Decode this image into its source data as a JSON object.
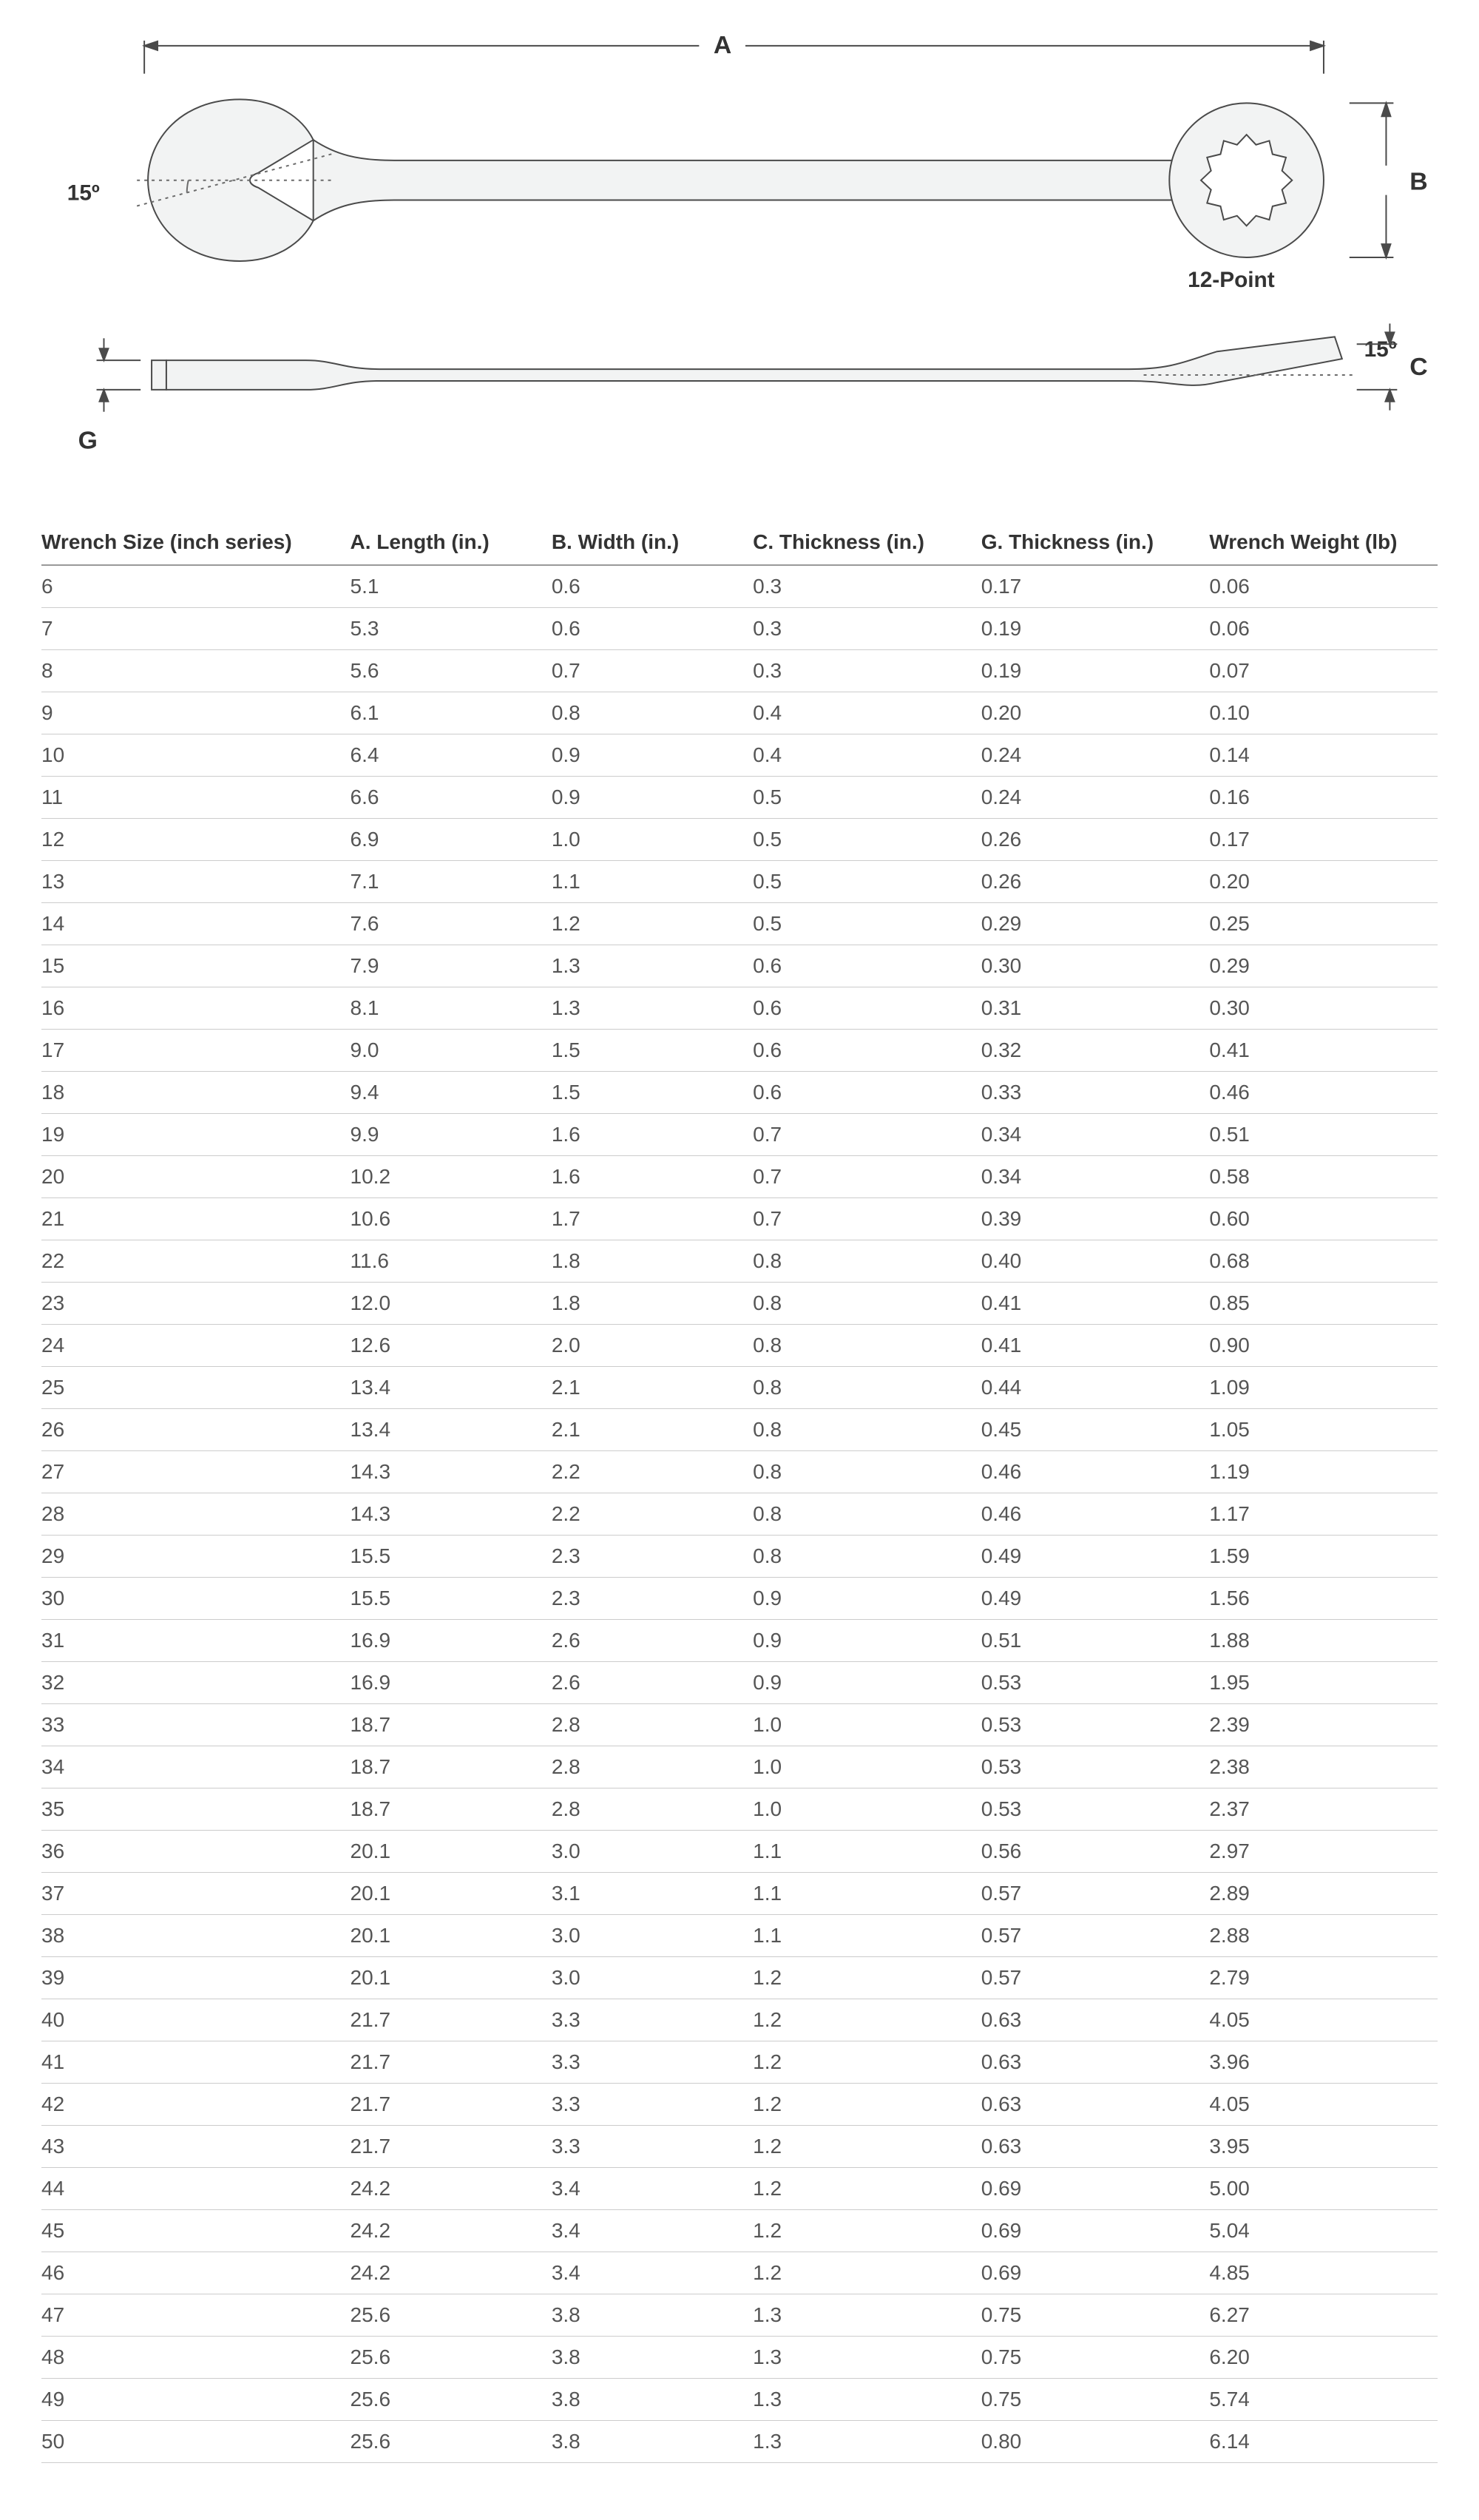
{
  "diagram": {
    "labels": {
      "A": "A",
      "B": "B",
      "C": "C",
      "G": "G",
      "angle": "15º",
      "point": "12-Point"
    },
    "colors": {
      "stroke": "#4a4a4a",
      "fill": "#f2f3f3",
      "text": "#333333",
      "dash": "#6b6b6b"
    }
  },
  "table": {
    "columns": [
      "Wrench Size (inch series)",
      "A. Length (in.)",
      "B. Width (in.)",
      "C. Thickness (in.)",
      "G. Thickness (in.)",
      "Wrench Weight (lb)"
    ],
    "rows": [
      [
        "6",
        "5.1",
        "0.6",
        "0.3",
        "0.17",
        "0.06"
      ],
      [
        "7",
        "5.3",
        "0.6",
        "0.3",
        "0.19",
        "0.06"
      ],
      [
        "8",
        "5.6",
        "0.7",
        "0.3",
        "0.19",
        "0.07"
      ],
      [
        "9",
        "6.1",
        "0.8",
        "0.4",
        "0.20",
        "0.10"
      ],
      [
        "10",
        "6.4",
        "0.9",
        "0.4",
        "0.24",
        "0.14"
      ],
      [
        "11",
        "6.6",
        "0.9",
        "0.5",
        "0.24",
        "0.16"
      ],
      [
        "12",
        "6.9",
        "1.0",
        "0.5",
        "0.26",
        "0.17"
      ],
      [
        "13",
        "7.1",
        "1.1",
        "0.5",
        "0.26",
        "0.20"
      ],
      [
        "14",
        "7.6",
        "1.2",
        "0.5",
        "0.29",
        "0.25"
      ],
      [
        "15",
        "7.9",
        "1.3",
        "0.6",
        "0.30",
        "0.29"
      ],
      [
        "16",
        "8.1",
        "1.3",
        "0.6",
        "0.31",
        "0.30"
      ],
      [
        "17",
        "9.0",
        "1.5",
        "0.6",
        "0.32",
        "0.41"
      ],
      [
        "18",
        "9.4",
        "1.5",
        "0.6",
        "0.33",
        "0.46"
      ],
      [
        "19",
        "9.9",
        "1.6",
        "0.7",
        "0.34",
        "0.51"
      ],
      [
        "20",
        "10.2",
        "1.6",
        "0.7",
        "0.34",
        "0.58"
      ],
      [
        "21",
        "10.6",
        "1.7",
        "0.7",
        "0.39",
        "0.60"
      ],
      [
        "22",
        "11.6",
        "1.8",
        "0.8",
        "0.40",
        "0.68"
      ],
      [
        "23",
        "12.0",
        "1.8",
        "0.8",
        "0.41",
        "0.85"
      ],
      [
        "24",
        "12.6",
        "2.0",
        "0.8",
        "0.41",
        "0.90"
      ],
      [
        "25",
        "13.4",
        "2.1",
        "0.8",
        "0.44",
        "1.09"
      ],
      [
        "26",
        "13.4",
        "2.1",
        "0.8",
        "0.45",
        "1.05"
      ],
      [
        "27",
        "14.3",
        "2.2",
        "0.8",
        "0.46",
        "1.19"
      ],
      [
        "28",
        "14.3",
        "2.2",
        "0.8",
        "0.46",
        "1.17"
      ],
      [
        "29",
        "15.5",
        "2.3",
        "0.8",
        "0.49",
        "1.59"
      ],
      [
        "30",
        "15.5",
        "2.3",
        "0.9",
        "0.49",
        "1.56"
      ],
      [
        "31",
        "16.9",
        "2.6",
        "0.9",
        "0.51",
        "1.88"
      ],
      [
        "32",
        "16.9",
        "2.6",
        "0.9",
        "0.53",
        "1.95"
      ],
      [
        "33",
        "18.7",
        "2.8",
        "1.0",
        "0.53",
        "2.39"
      ],
      [
        "34",
        "18.7",
        "2.8",
        "1.0",
        "0.53",
        "2.38"
      ],
      [
        "35",
        "18.7",
        "2.8",
        "1.0",
        "0.53",
        "2.37"
      ],
      [
        "36",
        "20.1",
        "3.0",
        "1.1",
        "0.56",
        "2.97"
      ],
      [
        "37",
        "20.1",
        "3.1",
        "1.1",
        "0.57",
        "2.89"
      ],
      [
        "38",
        "20.1",
        "3.0",
        "1.1",
        "0.57",
        "2.88"
      ],
      [
        "39",
        "20.1",
        "3.0",
        "1.2",
        "0.57",
        "2.79"
      ],
      [
        "40",
        "21.7",
        "3.3",
        "1.2",
        "0.63",
        "4.05"
      ],
      [
        "41",
        "21.7",
        "3.3",
        "1.2",
        "0.63",
        "3.96"
      ],
      [
        "42",
        "21.7",
        "3.3",
        "1.2",
        "0.63",
        "4.05"
      ],
      [
        "43",
        "21.7",
        "3.3",
        "1.2",
        "0.63",
        "3.95"
      ],
      [
        "44",
        "24.2",
        "3.4",
        "1.2",
        "0.69",
        "5.00"
      ],
      [
        "45",
        "24.2",
        "3.4",
        "1.2",
        "0.69",
        "5.04"
      ],
      [
        "46",
        "24.2",
        "3.4",
        "1.2",
        "0.69",
        "4.85"
      ],
      [
        "47",
        "25.6",
        "3.8",
        "1.3",
        "0.75",
        "6.27"
      ],
      [
        "48",
        "25.6",
        "3.8",
        "1.3",
        "0.75",
        "6.20"
      ],
      [
        "49",
        "25.6",
        "3.8",
        "1.3",
        "0.75",
        "5.74"
      ],
      [
        "50",
        "25.6",
        "3.8",
        "1.3",
        "0.80",
        "6.14"
      ]
    ],
    "header_border_color": "#999999",
    "row_border_color": "#cccccc",
    "header_fontsize": 28,
    "cell_fontsize": 28,
    "text_color": "#555555"
  }
}
